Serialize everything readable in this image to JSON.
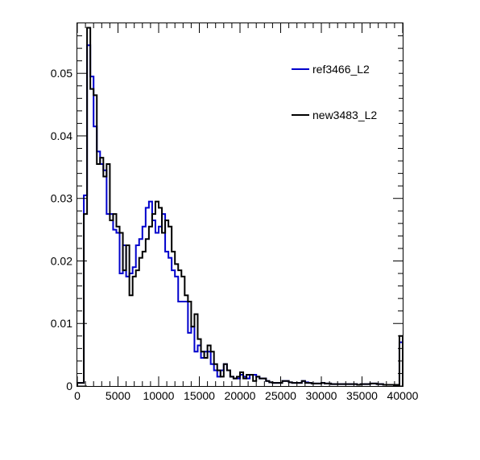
{
  "chart_data": {
    "type": "histogram",
    "title": "",
    "xlabel": "",
    "ylabel": "",
    "xlim": [
      0,
      40000
    ],
    "ylim": [
      0,
      0.058
    ],
    "grid": false,
    "legend_placement": "top-right",
    "x_ticks": [
      0,
      5000,
      10000,
      15000,
      20000,
      25000,
      30000,
      35000,
      40000
    ],
    "x_tick_labels": [
      "0",
      "5000",
      "10000",
      "15000",
      "20000",
      "25000",
      "30000",
      "35000",
      "40000"
    ],
    "y_ticks": [
      0,
      0.01,
      0.02,
      0.03,
      0.04,
      0.05
    ],
    "y_tick_labels": [
      "0",
      "0.01",
      "0.02",
      "0.03",
      "0.04",
      "0.05"
    ],
    "bin_width": 400,
    "bin_edges_start": 0,
    "series": [
      {
        "name": "ref3466_L2",
        "color": "#0000cc",
        "values": [
          0.0005,
          0.0005,
          0.0305,
          0.0545,
          0.0495,
          0.0415,
          0.0375,
          0.0355,
          0.0345,
          0.0275,
          0.0275,
          0.025,
          0.0245,
          0.018,
          0.0225,
          0.0175,
          0.018,
          0.019,
          0.0225,
          0.0235,
          0.0255,
          0.0285,
          0.0295,
          0.0265,
          0.0245,
          0.0255,
          0.0275,
          0.0215,
          0.0205,
          0.0185,
          0.0175,
          0.0135,
          0.0135,
          0.0135,
          0.0085,
          0.0095,
          0.0055,
          0.0065,
          0.0045,
          0.0055,
          0.0055,
          0.0035,
          0.0025,
          0.0015,
          0.0025,
          0.0035,
          0.0025,
          0.0015,
          0.0012,
          0.0012,
          0.0018,
          0.0015,
          0.0012,
          0.0018,
          0.0018,
          0.0015,
          0.0012,
          0.0012,
          0.0008,
          0.0006,
          0.0005,
          0.0005,
          0.0005,
          0.0008,
          0.0008,
          0.0006,
          0.0005,
          0.0005,
          0.0005,
          0.0008,
          0.0006,
          0.0005,
          0.0004,
          0.0004,
          0.0004,
          0.0005,
          0.0004,
          0.0004,
          0.0003,
          0.0003,
          0.0003,
          0.0003,
          0.0003,
          0.0003,
          0.0003,
          0.0003,
          0.0002,
          0.0003,
          0.0003,
          0.0003,
          0.0004,
          0.0004,
          0.0003,
          0.0003,
          0.0002,
          0.0002,
          0.0002,
          0.0002,
          0.0002,
          0.007
        ]
      },
      {
        "name": "new3483_L2",
        "color": "#000000",
        "values": [
          0.0005,
          0.0005,
          0.0275,
          0.0573,
          0.0475,
          0.0465,
          0.0355,
          0.0365,
          0.0335,
          0.0355,
          0.0265,
          0.0275,
          0.0255,
          0.0245,
          0.0185,
          0.0225,
          0.0145,
          0.0175,
          0.0185,
          0.0205,
          0.0215,
          0.0235,
          0.0255,
          0.0275,
          0.0295,
          0.0285,
          0.0245,
          0.0265,
          0.0255,
          0.0215,
          0.0195,
          0.0185,
          0.0175,
          0.0145,
          0.0135,
          0.0095,
          0.0115,
          0.0075,
          0.0055,
          0.0045,
          0.0065,
          0.0055,
          0.0035,
          0.0025,
          0.0015,
          0.0035,
          0.0025,
          0.0015,
          0.0012,
          0.0015,
          0.0022,
          0.0012,
          0.0018,
          0.0018,
          0.0008,
          0.0015,
          0.0012,
          0.0012,
          0.0008,
          0.0006,
          0.0005,
          0.0005,
          0.0005,
          0.0008,
          0.0008,
          0.0006,
          0.0005,
          0.0005,
          0.0005,
          0.0008,
          0.0005,
          0.0005,
          0.0004,
          0.0004,
          0.0004,
          0.0005,
          0.0004,
          0.0004,
          0.0003,
          0.0003,
          0.0003,
          0.0003,
          0.0003,
          0.0003,
          0.0003,
          0.0003,
          0.0002,
          0.0003,
          0.0003,
          0.0003,
          0.0004,
          0.0004,
          0.0003,
          0.0003,
          0.0002,
          0.0002,
          0.0002,
          0.0002,
          0.0002,
          0.008
        ]
      }
    ]
  }
}
